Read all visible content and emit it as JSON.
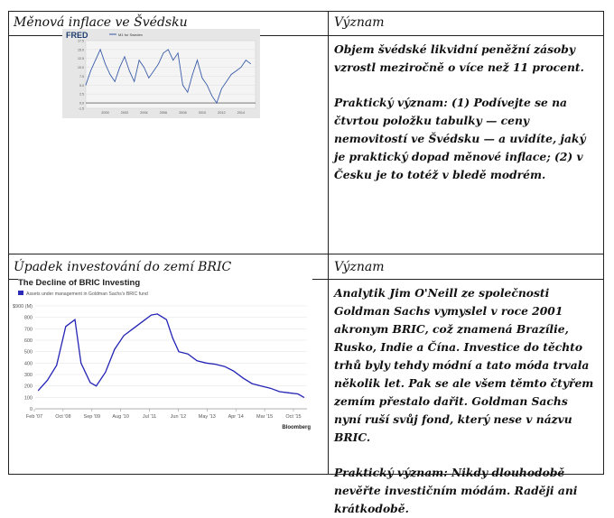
{
  "section1": {
    "header_left": "Měnová inflace ve Švédsku",
    "header_right": "Význam",
    "description": "Objem švédské likvidní peněžní zásoby vzrostl meziročně o více než 11 procent.",
    "practical": "Praktický význam:  (1) Podívejte se na čtvrtou položku tabulky — ceny nemovitostí ve Švédsku — a uvidíte, jaký je praktický dopad měnové inflace; (2) v Česku je to totéž v bledě modrém."
  },
  "section2": {
    "header_left": "Úpadek investování do zemí BRIC",
    "header_right": "Význam",
    "description": "Analytik Jim O'Neill ze společnosti Goldman Sachs vymyslel v roce 2001 akronym BRIC, což znamená Brazílie, Rusko, Indie a Čína. Investice do těchto trhů byly tehdy módní a tato móda trvala několik let. Pak se ale všem těmto čtyřem zemím přestalo dařit. Goldman Sachs nyní ruší svůj fond, který nese v názvu BRIC.",
    "practical": "Praktický význam: Nikdy dlouhodobě nevěřte investičním módám. Raději ani krátkodobě."
  },
  "chart_data": [
    {
      "type": "line",
      "title": "",
      "brand": "FRED",
      "legend": [
        "M1 for Sweden"
      ],
      "x": [
        2000,
        2002,
        2004,
        2006,
        2008,
        2010,
        2012,
        2014
      ],
      "ylim": [
        -1.5,
        17.5
      ],
      "yticks": [
        17.5,
        15.0,
        12.5,
        10.0,
        7.5,
        5.0,
        2.5,
        0.0,
        -1.5
      ],
      "series": [
        {
          "name": "M1 for Sweden",
          "x": [
            1998.0,
            1998.5,
            1999.0,
            1999.5,
            2000.0,
            2000.5,
            2001.0,
            2001.5,
            2002.0,
            2002.5,
            2003.0,
            2003.5,
            2004.0,
            2004.5,
            2005.0,
            2005.5,
            2006.0,
            2006.5,
            2007.0,
            2007.5,
            2008.0,
            2008.5,
            2009.0,
            2009.5,
            2010.0,
            2010.5,
            2011.0,
            2011.5,
            2012.0,
            2012.5,
            2013.0,
            2013.5,
            2014.0,
            2014.5,
            2015.0
          ],
          "values": [
            5,
            9,
            12,
            15,
            11,
            8,
            6,
            10,
            13,
            9,
            6,
            12,
            10,
            7,
            9,
            11,
            14,
            15,
            12,
            14,
            5,
            3,
            8,
            12,
            7,
            5,
            2,
            0,
            4,
            6,
            8,
            9,
            10,
            12,
            11
          ]
        }
      ]
    },
    {
      "type": "line",
      "title": "The Decline of BRIC Investing",
      "legend": [
        "Assets under management in Goldman Sachs's BRIC fund"
      ],
      "source": "Bloomberg",
      "xticks": [
        "Feb '07",
        "Oct '08",
        "Sep '09",
        "Aug '10",
        "Jul '11",
        "Jun '12",
        "May '13",
        "Apr '14",
        "Mar '15",
        "Oct '15"
      ],
      "yticks": [
        "$900 (M)",
        "800",
        "700",
        "600",
        "500",
        "400",
        "300",
        "200",
        "100",
        "0"
      ],
      "ylim": [
        0,
        900
      ],
      "series": [
        {
          "name": "Assets under management in Goldman Sachs's BRIC fund",
          "x": [
            2007.1,
            2007.4,
            2007.7,
            2008.0,
            2008.3,
            2008.5,
            2008.8,
            2009.0,
            2009.3,
            2009.6,
            2009.9,
            2010.2,
            2010.5,
            2010.8,
            2011.0,
            2011.3,
            2011.5,
            2011.7,
            2012.0,
            2012.3,
            2012.6,
            2012.9,
            2013.2,
            2013.5,
            2013.8,
            2014.1,
            2014.4,
            2014.7,
            2015.0,
            2015.3,
            2015.6,
            2015.8
          ],
          "values": [
            160,
            250,
            380,
            720,
            780,
            400,
            230,
            200,
            320,
            520,
            640,
            700,
            760,
            820,
            830,
            780,
            620,
            500,
            480,
            420,
            400,
            390,
            370,
            330,
            270,
            220,
            200,
            180,
            150,
            140,
            130,
            100
          ]
        }
      ]
    }
  ]
}
